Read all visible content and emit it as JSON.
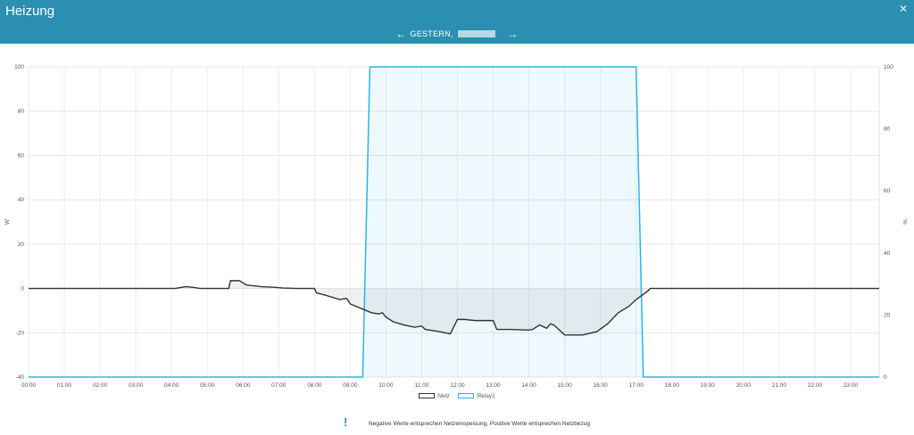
{
  "window": {
    "title": "Heizung",
    "close_icon": "close-icon"
  },
  "nav": {
    "date_label": "GESTERN,",
    "prev_icon": "arrow-left-icon",
    "next_icon": "arrow-right-icon"
  },
  "chart_data": {
    "type": "line",
    "left_axis": {
      "label": "W",
      "min": -40,
      "max": 100,
      "ticks": [
        100,
        80,
        60,
        40,
        20,
        0,
        -20,
        -40
      ]
    },
    "right_axis": {
      "label": "%",
      "min": 0,
      "max": 100,
      "ticks": [
        100,
        80,
        60,
        40,
        20,
        0
      ]
    },
    "x_ticks": [
      "00:00",
      "01:00",
      "02:00",
      "03:00",
      "04:00",
      "05:00",
      "06:00",
      "07:00",
      "08:00",
      "09:00",
      "10:00",
      "11:00",
      "12:00",
      "13:00",
      "14:00",
      "15:00",
      "16:00",
      "17:00",
      "18:00",
      "19:00",
      "20:00",
      "21:00",
      "22:00",
      "23:00"
    ],
    "grid": true,
    "series": [
      {
        "name": "Netz",
        "axis": "left",
        "color": "#333333",
        "x": [
          0,
          4.1,
          4.4,
          4.6,
          4.8,
          5.0,
          5.6,
          5.65,
          5.9,
          6.1,
          6.3,
          6.5,
          6.9,
          7.1,
          7.5,
          8.0,
          8.05,
          8.3,
          8.5,
          8.7,
          8.9,
          9.0,
          9.3,
          9.6,
          9.8,
          9.9,
          10.0,
          10.2,
          10.5,
          10.8,
          11.0,
          11.1,
          11.5,
          11.8,
          12.0,
          12.2,
          12.5,
          13.0,
          13.1,
          13.5,
          14.0,
          14.1,
          14.3,
          14.5,
          14.6,
          14.7,
          15.0,
          15.5,
          15.9,
          16.2,
          16.5,
          16.8,
          17.0,
          17.3,
          17.4,
          24
        ],
        "y": [
          0,
          0,
          0.8,
          0.5,
          0,
          0,
          0,
          3.5,
          3.5,
          1.5,
          1.2,
          0.8,
          0.5,
          0.2,
          0,
          0,
          -2,
          -3,
          -4,
          -5,
          -4.5,
          -7,
          -9,
          -11,
          -11.5,
          -11,
          -13,
          -15,
          -16.5,
          -17.5,
          -17,
          -18.5,
          -19.5,
          -20.5,
          -14,
          -14,
          -14.5,
          -14.5,
          -18.5,
          -18.5,
          -18.8,
          -18.5,
          -16.5,
          -18,
          -16,
          -16.5,
          -21,
          -21,
          -19.5,
          -16,
          -11,
          -8,
          -5,
          -1.5,
          0,
          0
        ]
      },
      {
        "name": "Relay1",
        "axis": "right",
        "color": "#29b6e8",
        "x": [
          0,
          9.35,
          9.55,
          17.0,
          17.2,
          24
        ],
        "y": [
          0,
          0,
          100,
          100,
          0,
          0
        ]
      }
    ],
    "legend_position": "bottom-center"
  },
  "note": {
    "icon": "exclamation-icon",
    "text": "Negative Werte entsprechen Netzeinspeisung, Positive Werte entsprechen Netzbezug"
  }
}
